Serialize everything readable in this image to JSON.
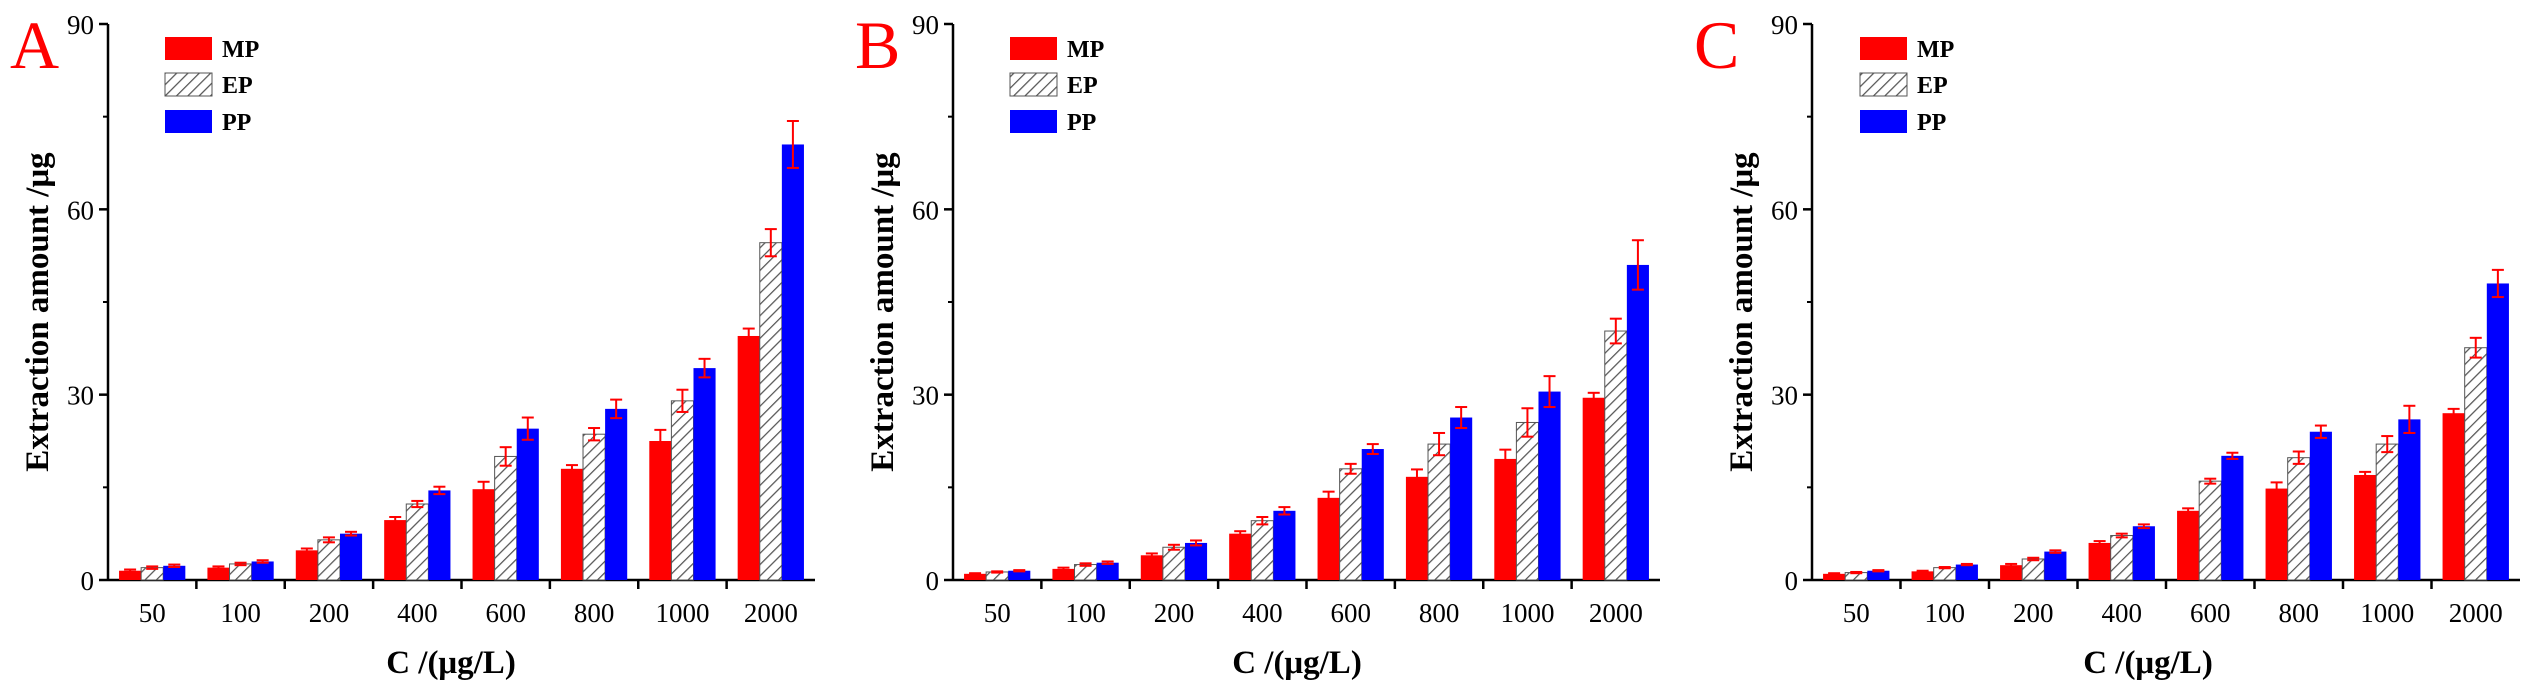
{
  "colors": {
    "MP": "#ff0000",
    "EP_stroke": "#555555",
    "PP": "#0000ff",
    "panel_letter": "#ff0000",
    "error_bar": "#ff0000"
  },
  "chart_data": [
    {
      "panel": "A",
      "type": "bar",
      "xlabel": "C /(μg/L)",
      "ylabel": "Extraction amount /μg",
      "ylim": [
        0,
        90
      ],
      "yticks": [
        0,
        30,
        60,
        90
      ],
      "legend_position": "top-left",
      "categories": [
        "50",
        "100",
        "200",
        "400",
        "600",
        "800",
        "1000",
        "2000"
      ],
      "series": [
        {
          "name": "MP",
          "values": [
            1.5,
            2.0,
            4.8,
            9.7,
            14.7,
            18.0,
            22.5,
            39.5
          ],
          "errors": [
            0.2,
            0.2,
            0.3,
            0.5,
            1.2,
            0.6,
            1.8,
            1.2
          ]
        },
        {
          "name": "EP",
          "values": [
            2.0,
            2.6,
            6.5,
            12.3,
            20.0,
            23.6,
            29.0,
            54.6
          ],
          "errors": [
            0.2,
            0.2,
            0.4,
            0.5,
            1.5,
            1.0,
            1.8,
            2.2
          ]
        },
        {
          "name": "PP",
          "values": [
            2.3,
            3.0,
            7.5,
            14.5,
            24.5,
            27.7,
            34.3,
            70.5
          ],
          "errors": [
            0.2,
            0.2,
            0.3,
            0.6,
            1.8,
            1.5,
            1.5,
            3.8
          ]
        }
      ]
    },
    {
      "panel": "B",
      "type": "bar",
      "xlabel": "C /(μg/L)",
      "ylabel": "Extraction amount /μg",
      "ylim": [
        0,
        90
      ],
      "yticks": [
        0,
        30,
        60,
        90
      ],
      "legend_position": "top-left",
      "categories": [
        "50",
        "100",
        "200",
        "400",
        "600",
        "800",
        "1000",
        "2000"
      ],
      "series": [
        {
          "name": "MP",
          "values": [
            1.0,
            1.8,
            4.0,
            7.5,
            13.3,
            16.7,
            19.6,
            29.5
          ],
          "errors": [
            0.1,
            0.2,
            0.3,
            0.4,
            1.0,
            1.2,
            1.5,
            0.8
          ]
        },
        {
          "name": "EP",
          "values": [
            1.3,
            2.5,
            5.3,
            9.6,
            18.0,
            22.0,
            25.5,
            40.3
          ],
          "errors": [
            0.1,
            0.2,
            0.4,
            0.6,
            0.8,
            1.8,
            2.3,
            2.0
          ]
        },
        {
          "name": "PP",
          "values": [
            1.5,
            2.8,
            6.0,
            11.2,
            21.2,
            26.3,
            30.5,
            51.0
          ],
          "errors": [
            0.1,
            0.2,
            0.4,
            0.6,
            0.8,
            1.7,
            2.5,
            4.0
          ]
        }
      ]
    },
    {
      "panel": "C",
      "type": "bar",
      "xlabel": "C /(μg/L)",
      "ylabel": "Extraction amount /μg",
      "ylim": [
        0,
        90
      ],
      "yticks": [
        0,
        30,
        60,
        90
      ],
      "legend_position": "top-left",
      "categories": [
        "50",
        "100",
        "200",
        "400",
        "600",
        "800",
        "1000",
        "2000"
      ],
      "series": [
        {
          "name": "MP",
          "values": [
            1.0,
            1.4,
            2.4,
            6.0,
            11.2,
            14.8,
            17.0,
            27.0
          ],
          "errors": [
            0.1,
            0.1,
            0.2,
            0.3,
            0.4,
            1.0,
            0.5,
            0.7
          ]
        },
        {
          "name": "EP",
          "values": [
            1.2,
            2.0,
            3.4,
            7.2,
            16.0,
            19.8,
            22.0,
            37.6
          ],
          "errors": [
            0.1,
            0.1,
            0.2,
            0.3,
            0.4,
            1.0,
            1.3,
            1.6
          ]
        },
        {
          "name": "PP",
          "values": [
            1.5,
            2.5,
            4.6,
            8.7,
            20.1,
            24.0,
            26.0,
            48.0
          ],
          "errors": [
            0.1,
            0.1,
            0.2,
            0.3,
            0.5,
            1.0,
            2.2,
            2.2
          ]
        }
      ]
    }
  ]
}
